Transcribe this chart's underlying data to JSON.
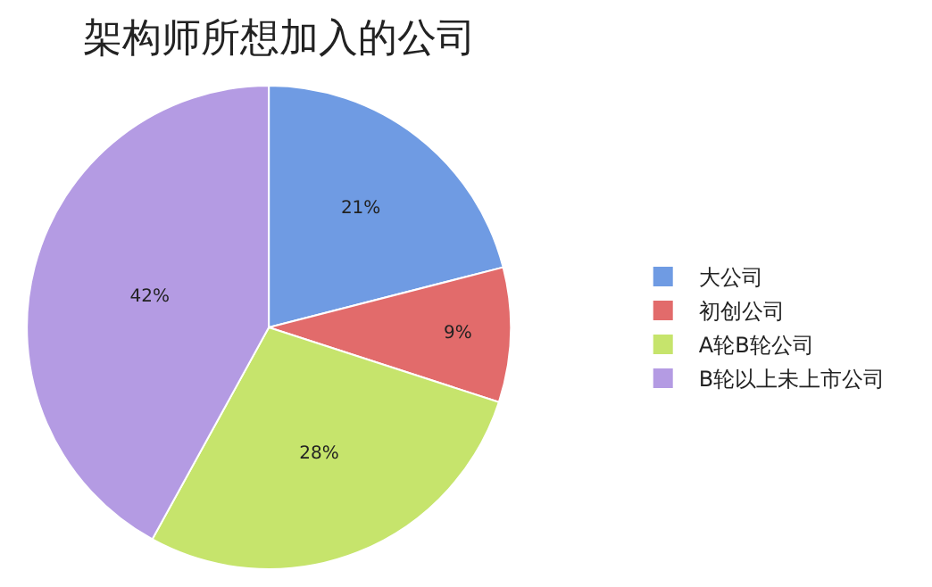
{
  "chart_data": {
    "type": "pie",
    "title": "架构师所想加入的公司",
    "categories": [
      "大公司",
      "初创公司",
      "A轮B轮公司",
      "B轮以上未上市公司"
    ],
    "values": [
      21,
      9,
      28,
      42
    ],
    "colors": [
      "#6f9be3",
      "#e26b6b",
      "#c6e46c",
      "#b49be3"
    ],
    "value_labels": [
      "21%",
      "9%",
      "28%",
      "42%"
    ],
    "legend": "right"
  }
}
